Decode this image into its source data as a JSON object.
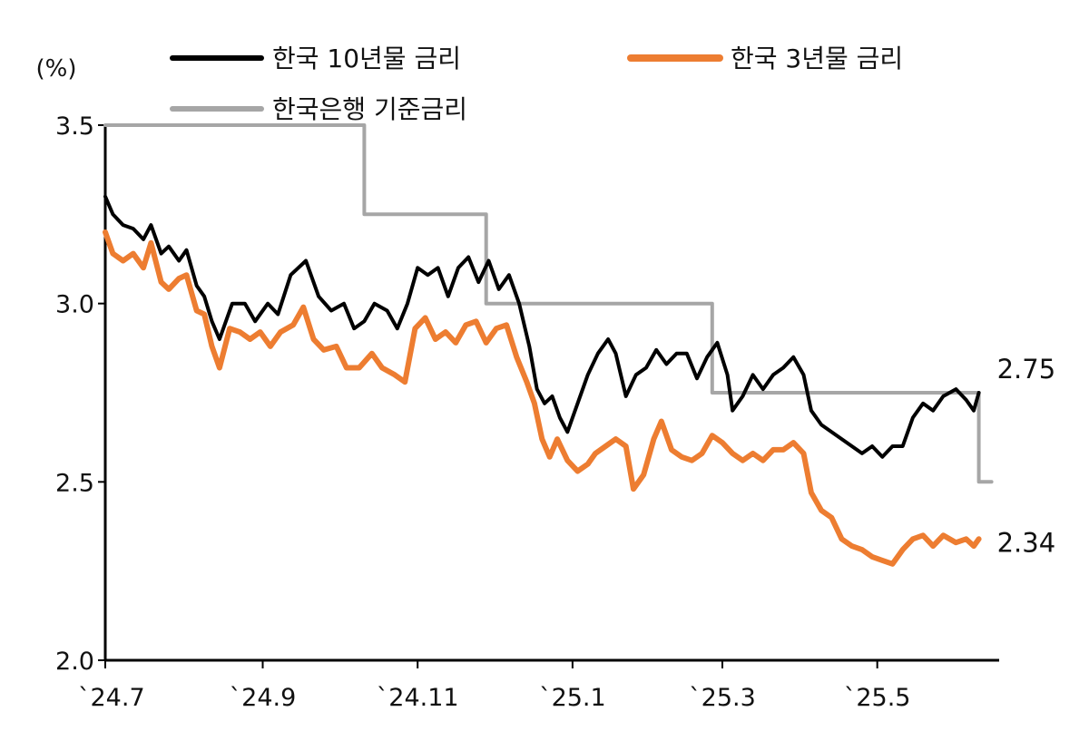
{
  "chart_data": {
    "type": "line",
    "y_unit_label": "(%)",
    "ylim": [
      2.0,
      3.5
    ],
    "y_ticks": [
      {
        "value": 3.5,
        "label": "3.5"
      },
      {
        "value": 3.0,
        "label": "3.0"
      },
      {
        "value": 2.5,
        "label": "2.5"
      },
      {
        "value": 2.0,
        "label": "2.0"
      }
    ],
    "xlim": [
      "2024-07-01",
      "2025-06-18"
    ],
    "x_ticks": [
      {
        "date": "2024-07-01",
        "label": "`24.7"
      },
      {
        "date": "2024-09-01",
        "label": "`24.9"
      },
      {
        "date": "2024-11-01",
        "label": "`24.11"
      },
      {
        "date": "2025-01-01",
        "label": "`25.1"
      },
      {
        "date": "2025-03-01",
        "label": "`25.3"
      },
      {
        "date": "2025-05-01",
        "label": "`25.5"
      }
    ],
    "grid": false,
    "legend_position": "top",
    "series": [
      {
        "name": "한국 10년물 금리",
        "color": "#000000",
        "width": 4,
        "end_label": "2.75",
        "points": [
          [
            "2024-07-01",
            3.3
          ],
          [
            "2024-07-04",
            3.25
          ],
          [
            "2024-07-08",
            3.22
          ],
          [
            "2024-07-12",
            3.21
          ],
          [
            "2024-07-16",
            3.18
          ],
          [
            "2024-07-19",
            3.22
          ],
          [
            "2024-07-23",
            3.14
          ],
          [
            "2024-07-26",
            3.16
          ],
          [
            "2024-07-30",
            3.12
          ],
          [
            "2024-08-02",
            3.15
          ],
          [
            "2024-08-06",
            3.05
          ],
          [
            "2024-08-09",
            3.02
          ],
          [
            "2024-08-12",
            2.95
          ],
          [
            "2024-08-15",
            2.9
          ],
          [
            "2024-08-20",
            3.0
          ],
          [
            "2024-08-25",
            3.0
          ],
          [
            "2024-08-29",
            2.95
          ],
          [
            "2024-09-03",
            3.0
          ],
          [
            "2024-09-07",
            2.97
          ],
          [
            "2024-09-12",
            3.08
          ],
          [
            "2024-09-18",
            3.12
          ],
          [
            "2024-09-23",
            3.02
          ],
          [
            "2024-09-28",
            2.98
          ],
          [
            "2024-10-03",
            3.0
          ],
          [
            "2024-10-07",
            2.93
          ],
          [
            "2024-10-11",
            2.95
          ],
          [
            "2024-10-15",
            3.0
          ],
          [
            "2024-10-20",
            2.98
          ],
          [
            "2024-10-24",
            2.93
          ],
          [
            "2024-10-28",
            3.0
          ],
          [
            "2024-11-01",
            3.1
          ],
          [
            "2024-11-05",
            3.08
          ],
          [
            "2024-11-09",
            3.1
          ],
          [
            "2024-11-13",
            3.02
          ],
          [
            "2024-11-17",
            3.1
          ],
          [
            "2024-11-21",
            3.13
          ],
          [
            "2024-11-25",
            3.06
          ],
          [
            "2024-11-29",
            3.12
          ],
          [
            "2024-12-03",
            3.04
          ],
          [
            "2024-12-07",
            3.08
          ],
          [
            "2024-12-11",
            3.0
          ],
          [
            "2024-12-15",
            2.88
          ],
          [
            "2024-12-18",
            2.76
          ],
          [
            "2024-12-21",
            2.72
          ],
          [
            "2024-12-24",
            2.74
          ],
          [
            "2024-12-27",
            2.68
          ],
          [
            "2024-12-30",
            2.64
          ],
          [
            "2025-01-03",
            2.72
          ],
          [
            "2025-01-07",
            2.8
          ],
          [
            "2025-01-11",
            2.86
          ],
          [
            "2025-01-15",
            2.9
          ],
          [
            "2025-01-18",
            2.86
          ],
          [
            "2025-01-22",
            2.74
          ],
          [
            "2025-01-26",
            2.8
          ],
          [
            "2025-01-30",
            2.82
          ],
          [
            "2025-02-03",
            2.87
          ],
          [
            "2025-02-07",
            2.83
          ],
          [
            "2025-02-11",
            2.86
          ],
          [
            "2025-02-15",
            2.86
          ],
          [
            "2025-02-19",
            2.79
          ],
          [
            "2025-02-23",
            2.85
          ],
          [
            "2025-02-27",
            2.89
          ],
          [
            "2025-03-03",
            2.8
          ],
          [
            "2025-03-05",
            2.7
          ],
          [
            "2025-03-09",
            2.74
          ],
          [
            "2025-03-13",
            2.8
          ],
          [
            "2025-03-17",
            2.76
          ],
          [
            "2025-03-21",
            2.8
          ],
          [
            "2025-03-25",
            2.82
          ],
          [
            "2025-03-29",
            2.85
          ],
          [
            "2025-04-02",
            2.8
          ],
          [
            "2025-04-05",
            2.7
          ],
          [
            "2025-04-09",
            2.66
          ],
          [
            "2025-04-13",
            2.64
          ],
          [
            "2025-04-17",
            2.62
          ],
          [
            "2025-04-21",
            2.6
          ],
          [
            "2025-04-25",
            2.58
          ],
          [
            "2025-04-29",
            2.6
          ],
          [
            "2025-05-03",
            2.57
          ],
          [
            "2025-05-07",
            2.6
          ],
          [
            "2025-05-11",
            2.6
          ],
          [
            "2025-05-15",
            2.68
          ],
          [
            "2025-05-19",
            2.72
          ],
          [
            "2025-05-23",
            2.7
          ],
          [
            "2025-05-27",
            2.74
          ],
          [
            "2025-06-01",
            2.76
          ],
          [
            "2025-06-05",
            2.73
          ],
          [
            "2025-06-08",
            2.7
          ],
          [
            "2025-06-10",
            2.75
          ]
        ]
      },
      {
        "name": "한국 3년물 금리",
        "color": "#ED7D31",
        "width": 6,
        "end_label": "2.34",
        "points": [
          [
            "2024-07-01",
            3.2
          ],
          [
            "2024-07-04",
            3.14
          ],
          [
            "2024-07-08",
            3.12
          ],
          [
            "2024-07-12",
            3.14
          ],
          [
            "2024-07-16",
            3.1
          ],
          [
            "2024-07-19",
            3.17
          ],
          [
            "2024-07-23",
            3.06
          ],
          [
            "2024-07-26",
            3.04
          ],
          [
            "2024-07-30",
            3.07
          ],
          [
            "2024-08-02",
            3.08
          ],
          [
            "2024-08-06",
            2.98
          ],
          [
            "2024-08-09",
            2.97
          ],
          [
            "2024-08-12",
            2.88
          ],
          [
            "2024-08-15",
            2.82
          ],
          [
            "2024-08-19",
            2.93
          ],
          [
            "2024-08-23",
            2.92
          ],
          [
            "2024-08-27",
            2.9
          ],
          [
            "2024-08-31",
            2.92
          ],
          [
            "2024-09-04",
            2.88
          ],
          [
            "2024-09-08",
            2.92
          ],
          [
            "2024-09-13",
            2.94
          ],
          [
            "2024-09-17",
            2.99
          ],
          [
            "2024-09-21",
            2.9
          ],
          [
            "2024-09-25",
            2.87
          ],
          [
            "2024-09-30",
            2.88
          ],
          [
            "2024-10-04",
            2.82
          ],
          [
            "2024-10-09",
            2.82
          ],
          [
            "2024-10-14",
            2.86
          ],
          [
            "2024-10-18",
            2.82
          ],
          [
            "2024-10-23",
            2.8
          ],
          [
            "2024-10-27",
            2.78
          ],
          [
            "2024-10-31",
            2.93
          ],
          [
            "2024-11-04",
            2.96
          ],
          [
            "2024-11-08",
            2.9
          ],
          [
            "2024-11-12",
            2.92
          ],
          [
            "2024-11-16",
            2.89
          ],
          [
            "2024-11-20",
            2.94
          ],
          [
            "2024-11-24",
            2.95
          ],
          [
            "2024-11-28",
            2.89
          ],
          [
            "2024-12-02",
            2.93
          ],
          [
            "2024-12-06",
            2.94
          ],
          [
            "2024-12-10",
            2.85
          ],
          [
            "2024-12-14",
            2.78
          ],
          [
            "2024-12-17",
            2.72
          ],
          [
            "2024-12-20",
            2.62
          ],
          [
            "2024-12-23",
            2.57
          ],
          [
            "2024-12-26",
            2.62
          ],
          [
            "2024-12-30",
            2.56
          ],
          [
            "2025-01-03",
            2.53
          ],
          [
            "2025-01-07",
            2.55
          ],
          [
            "2025-01-10",
            2.58
          ],
          [
            "2025-01-14",
            2.6
          ],
          [
            "2025-01-18",
            2.62
          ],
          [
            "2025-01-22",
            2.6
          ],
          [
            "2025-01-25",
            2.48
          ],
          [
            "2025-01-29",
            2.52
          ],
          [
            "2025-02-02",
            2.62
          ],
          [
            "2025-02-05",
            2.67
          ],
          [
            "2025-02-09",
            2.59
          ],
          [
            "2025-02-13",
            2.57
          ],
          [
            "2025-02-17",
            2.56
          ],
          [
            "2025-02-21",
            2.58
          ],
          [
            "2025-02-25",
            2.63
          ],
          [
            "2025-03-01",
            2.61
          ],
          [
            "2025-03-05",
            2.58
          ],
          [
            "2025-03-09",
            2.56
          ],
          [
            "2025-03-13",
            2.58
          ],
          [
            "2025-03-17",
            2.56
          ],
          [
            "2025-03-21",
            2.59
          ],
          [
            "2025-03-25",
            2.59
          ],
          [
            "2025-03-29",
            2.61
          ],
          [
            "2025-04-02",
            2.58
          ],
          [
            "2025-04-05",
            2.47
          ],
          [
            "2025-04-09",
            2.42
          ],
          [
            "2025-04-13",
            2.4
          ],
          [
            "2025-04-17",
            2.34
          ],
          [
            "2025-04-21",
            2.32
          ],
          [
            "2025-04-25",
            2.31
          ],
          [
            "2025-04-29",
            2.29
          ],
          [
            "2025-05-03",
            2.28
          ],
          [
            "2025-05-07",
            2.27
          ],
          [
            "2025-05-11",
            2.31
          ],
          [
            "2025-05-15",
            2.34
          ],
          [
            "2025-05-19",
            2.35
          ],
          [
            "2025-05-23",
            2.32
          ],
          [
            "2025-05-27",
            2.35
          ],
          [
            "2025-06-01",
            2.33
          ],
          [
            "2025-06-05",
            2.34
          ],
          [
            "2025-06-08",
            2.32
          ],
          [
            "2025-06-10",
            2.34
          ]
        ]
      },
      {
        "name": "한국은행 기준금리",
        "color": "#A6A6A6",
        "width": 4,
        "step": true,
        "points": [
          [
            "2024-07-01",
            3.5
          ],
          [
            "2024-10-11",
            3.25
          ],
          [
            "2024-11-28",
            3.0
          ],
          [
            "2025-02-25",
            2.75
          ],
          [
            "2025-06-10",
            2.5
          ],
          [
            "2025-06-15",
            2.5
          ]
        ]
      }
    ]
  }
}
